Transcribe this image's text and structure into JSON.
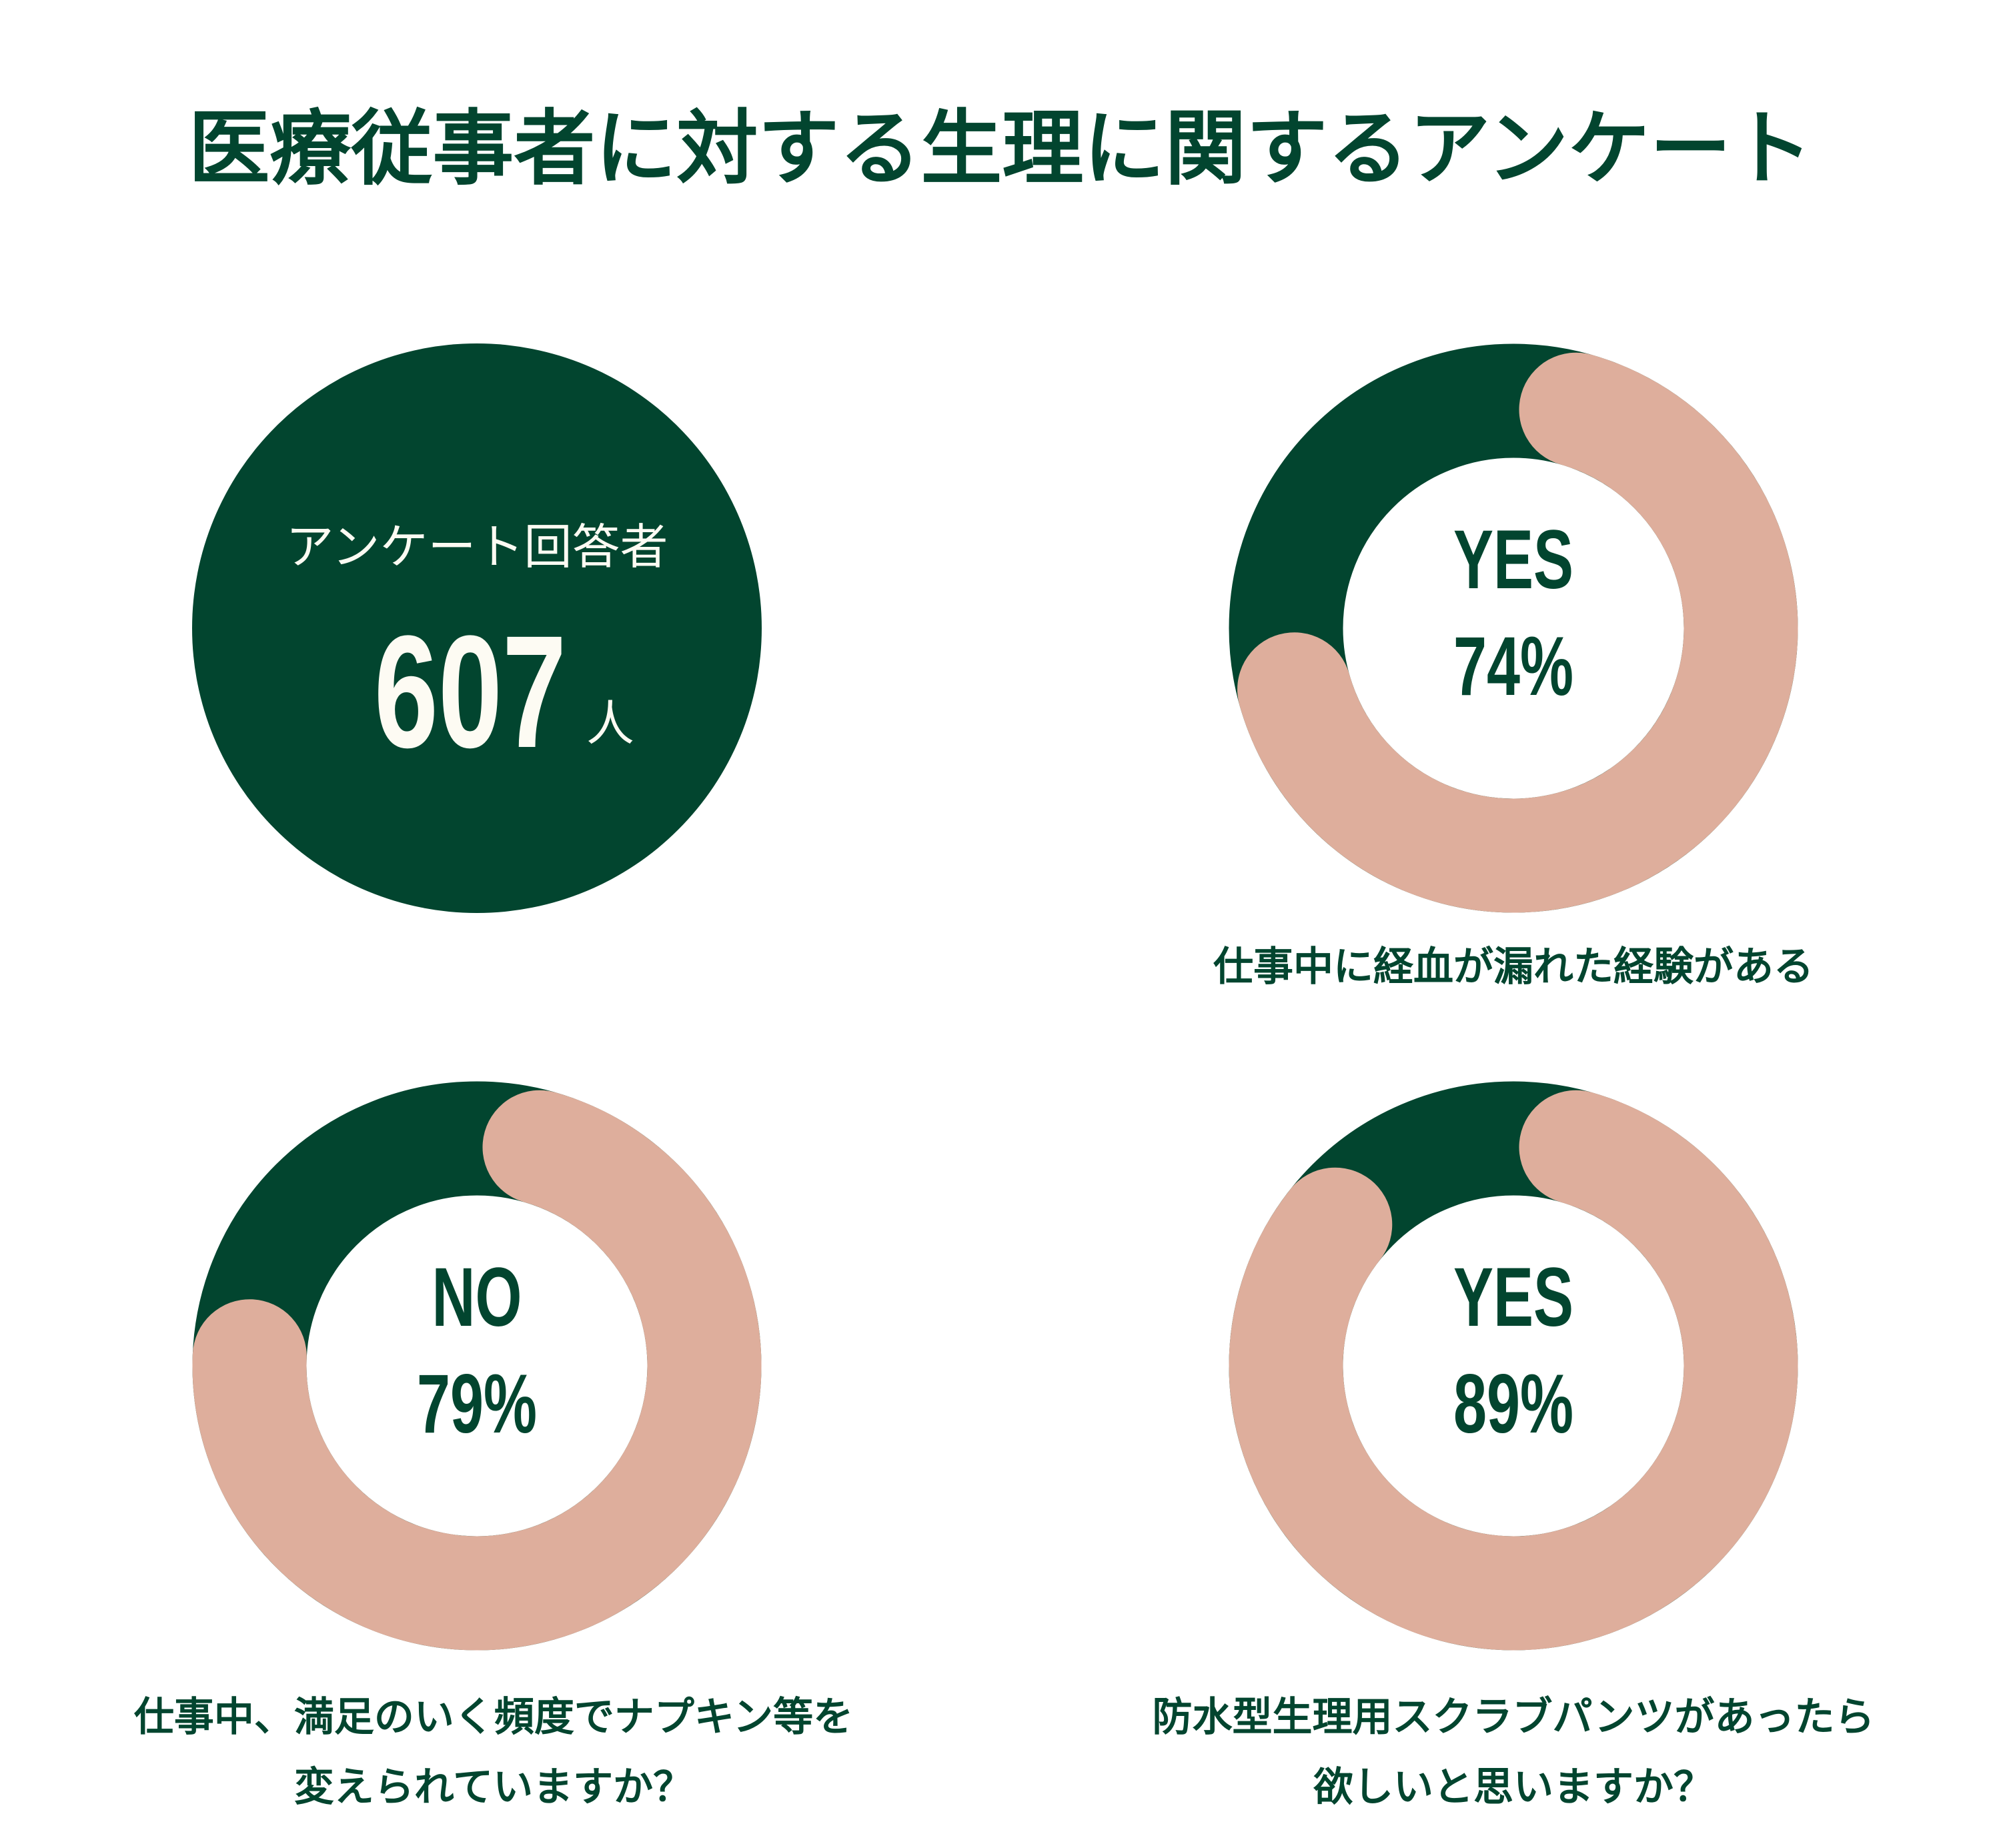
{
  "title": "医療従事者に対する生理に関するアンケート",
  "colors": {
    "dark": "#02452F",
    "accent": "#DEAE9C",
    "text": "#02452F"
  },
  "respondents": {
    "label": "アンケート回答者",
    "count": "607",
    "unit": "人"
  },
  "chart_data": [
    {
      "type": "pie",
      "answer": "YES",
      "value_label": "74%",
      "value": 74,
      "caption_lines": [
        "仕事中に経血が漏れた経験がある"
      ]
    },
    {
      "type": "pie",
      "answer": "NO",
      "value_label": "79%",
      "value": 79,
      "caption_lines": [
        "仕事中、満足のいく頻度でナプキン等を",
        "変えられていますか？"
      ]
    },
    {
      "type": "pie",
      "answer": "YES",
      "value_label": "89%",
      "value": 89,
      "caption_lines": [
        "防水型生理用スクラブパンツがあったら",
        "欲しいと思いますか？"
      ]
    }
  ]
}
